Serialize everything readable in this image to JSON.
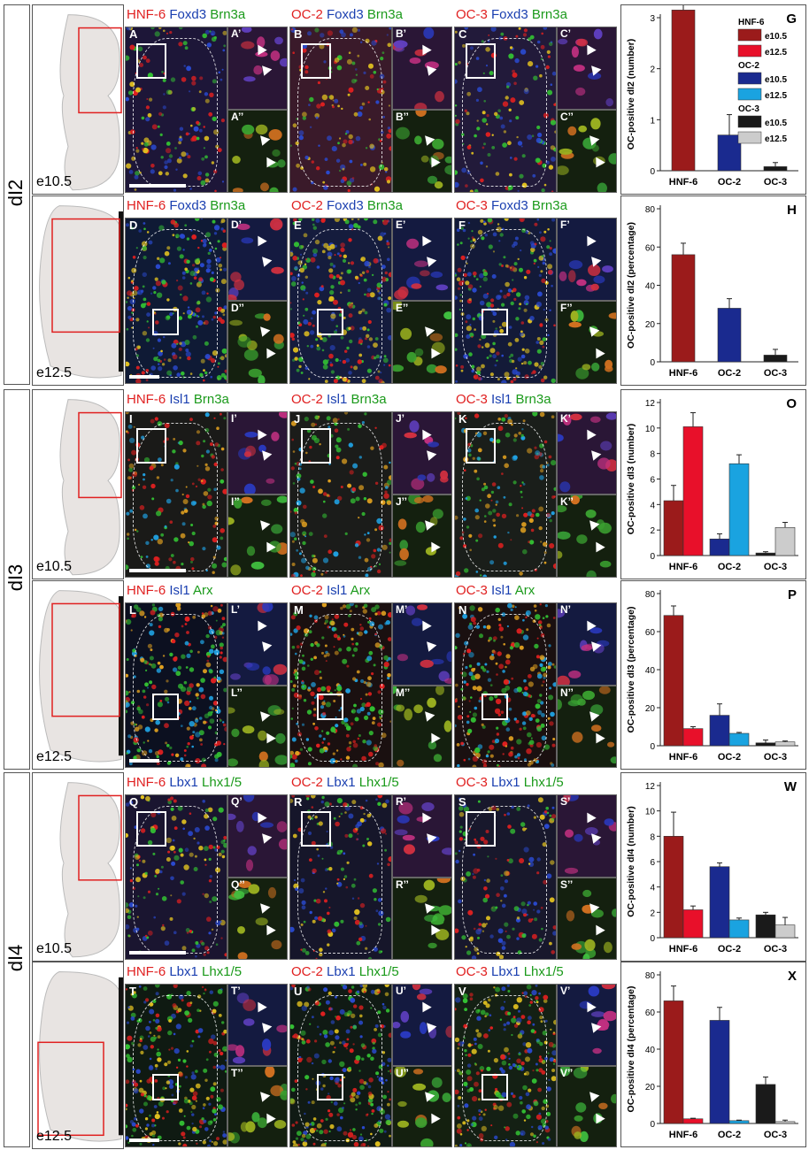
{
  "sections": [
    {
      "id": "dI2",
      "label": "dI2"
    },
    {
      "id": "dI3",
      "label": "dI3"
    },
    {
      "id": "dI4",
      "label": "dI4"
    }
  ],
  "stages": {
    "e105": "e10.5",
    "e125": "e12.5"
  },
  "colors": {
    "red": "#e02020",
    "blue": "#1a3fb0",
    "green": "#1b9a1b",
    "hnf6_e105": "#9b1b1b",
    "hnf6_e125": "#e8102a",
    "oc2_e105": "#1a2a8f",
    "oc2_e125": "#1aa3e0",
    "oc3_e105": "#1a1a1a",
    "oc3_e125": "#cccccc"
  },
  "rows": [
    {
      "panels": [
        {
          "letter": "A",
          "sub1": "A’",
          "sub2": "A’’",
          "h": [
            "HNF-6",
            "Foxd3",
            "Brn3a"
          ]
        },
        {
          "letter": "B",
          "sub1": "B’",
          "sub2": "B’’",
          "h": [
            "OC-2",
            "Foxd3",
            "Brn3a"
          ]
        },
        {
          "letter": "C",
          "sub1": "C’",
          "sub2": "C’’",
          "h": [
            "OC-3",
            "Foxd3",
            "Brn3a"
          ]
        }
      ]
    },
    {
      "panels": [
        {
          "letter": "D",
          "sub1": "D’",
          "sub2": "D’’",
          "h": [
            "HNF-6",
            "Foxd3",
            "Brn3a"
          ]
        },
        {
          "letter": "E",
          "sub1": "E’",
          "sub2": "E’’",
          "h": [
            "OC-2",
            "Foxd3",
            "Brn3a"
          ]
        },
        {
          "letter": "F",
          "sub1": "F’",
          "sub2": "F’’",
          "h": [
            "OC-3",
            "Foxd3",
            "Brn3a"
          ]
        }
      ]
    },
    {
      "panels": [
        {
          "letter": "I",
          "sub1": "I’",
          "sub2": "I’’",
          "h": [
            "HNF-6",
            "Isl1",
            "Brn3a"
          ]
        },
        {
          "letter": "J",
          "sub1": "J’",
          "sub2": "J’’",
          "h": [
            "OC-2",
            "Isl1",
            "Brn3a"
          ]
        },
        {
          "letter": "K",
          "sub1": "K’",
          "sub2": "K’’",
          "h": [
            "OC-3",
            "Isl1",
            "Brn3a"
          ]
        }
      ]
    },
    {
      "panels": [
        {
          "letter": "L",
          "sub1": "L’",
          "sub2": "L’’",
          "h": [
            "HNF-6",
            "Isl1",
            "Arx"
          ]
        },
        {
          "letter": "M",
          "sub1": "M’",
          "sub2": "M’’",
          "h": [
            "OC-2",
            "Isl1",
            "Arx"
          ]
        },
        {
          "letter": "N",
          "sub1": "N’",
          "sub2": "N’’",
          "h": [
            "OC-3",
            "Isl1",
            "Arx"
          ]
        }
      ]
    },
    {
      "panels": [
        {
          "letter": "Q",
          "sub1": "Q’",
          "sub2": "Q’’",
          "h": [
            "HNF-6",
            "Lbx1",
            "Lhx1/5"
          ]
        },
        {
          "letter": "R",
          "sub1": "R’",
          "sub2": "R’’",
          "h": [
            "OC-2",
            "Lbx1",
            "Lhx1/5"
          ]
        },
        {
          "letter": "S",
          "sub1": "S’",
          "sub2": "S’’",
          "h": [
            "OC-3",
            "Lbx1",
            "Lhx1/5"
          ]
        }
      ]
    },
    {
      "panels": [
        {
          "letter": "T",
          "sub1": "T’",
          "sub2": "T’’",
          "h": [
            "HNF-6",
            "Lbx1",
            "Lhx1/5"
          ]
        },
        {
          "letter": "U",
          "sub1": "U’",
          "sub2": "U’’",
          "h": [
            "OC-2",
            "Lbx1",
            "Lhx1/5"
          ]
        },
        {
          "letter": "V",
          "sub1": "V’",
          "sub2": "V’’",
          "h": [
            "OC-3",
            "Lbx1",
            "Lhx1/5"
          ]
        }
      ]
    }
  ],
  "legend": {
    "groups": [
      {
        "name": "HNF-6",
        "items": [
          "e10.5",
          "e12.5"
        ]
      },
      {
        "name": "OC-2",
        "items": [
          "e10.5",
          "e12.5"
        ]
      },
      {
        "name": "OC-3",
        "items": [
          "e10.5",
          "e12.5"
        ]
      }
    ]
  },
  "chart_data": [
    {
      "panel": "G",
      "type": "bar",
      "categories": [
        "HNF-6",
        "OC-2",
        "OC-3"
      ],
      "ylabel": "OC-positive dI2 (number)",
      "ylim": [
        0,
        3
      ],
      "yticks": [
        0,
        1,
        2,
        3
      ],
      "series": [
        {
          "name": "e10.5",
          "values": [
            3.15,
            0.7,
            0.08
          ],
          "errors": [
            0.8,
            0.4,
            0.08
          ]
        }
      ]
    },
    {
      "panel": "H",
      "type": "bar",
      "categories": [
        "HNF-6",
        "OC-2",
        "OC-3"
      ],
      "ylabel": "OC-positive dI2 (percentage)",
      "ylim": [
        0,
        80
      ],
      "yticks": [
        0,
        20,
        40,
        60,
        80
      ],
      "series": [
        {
          "name": "e10.5",
          "values": [
            56,
            28,
            3.5
          ],
          "errors": [
            6,
            5,
            3
          ]
        }
      ]
    },
    {
      "panel": "O",
      "type": "bar",
      "categories": [
        "HNF-6",
        "OC-2",
        "OC-3"
      ],
      "ylabel": "OC-positive dI3 (number)",
      "ylim": [
        0,
        12
      ],
      "yticks": [
        0,
        2,
        4,
        6,
        8,
        10,
        12
      ],
      "series": [
        {
          "name": "e10.5",
          "values": [
            4.3,
            1.3,
            0.2
          ],
          "errors": [
            1.2,
            0.4,
            0.1
          ]
        },
        {
          "name": "e12.5",
          "values": [
            10.1,
            7.2,
            2.2
          ],
          "errors": [
            1.1,
            0.7,
            0.4
          ]
        }
      ]
    },
    {
      "panel": "P",
      "type": "bar",
      "categories": [
        "HNF-6",
        "OC-2",
        "OC-3"
      ],
      "ylabel": "OC-positive dI3 (percentage)",
      "ylim": [
        0,
        80
      ],
      "yticks": [
        0,
        20,
        40,
        60,
        80
      ],
      "series": [
        {
          "name": "e10.5",
          "values": [
            68.5,
            16,
            1.5
          ],
          "errors": [
            5,
            6,
            1.5
          ]
        },
        {
          "name": "e12.5",
          "values": [
            9,
            6.5,
            2
          ],
          "errors": [
            1,
            0.5,
            0.5
          ]
        }
      ]
    },
    {
      "panel": "W",
      "type": "bar",
      "categories": [
        "HNF-6",
        "OC-2",
        "OC-3"
      ],
      "ylabel": "OC-positive dI4 (number)",
      "ylim": [
        0,
        12
      ],
      "yticks": [
        0,
        2,
        4,
        6,
        8,
        10,
        12
      ],
      "series": [
        {
          "name": "e10.5",
          "values": [
            8.0,
            5.6,
            1.8
          ],
          "errors": [
            1.9,
            0.3,
            0.2
          ]
        },
        {
          "name": "e12.5",
          "values": [
            2.2,
            1.4,
            1.0
          ],
          "errors": [
            0.3,
            0.15,
            0.6
          ]
        }
      ]
    },
    {
      "panel": "X",
      "type": "bar",
      "categories": [
        "HNF-6",
        "OC-2",
        "OC-3"
      ],
      "ylabel": "OC-positive dI4 (percentage)",
      "ylim": [
        0,
        80
      ],
      "yticks": [
        0,
        20,
        40,
        60,
        80
      ],
      "series": [
        {
          "name": "e10.5",
          "values": [
            66,
            55.5,
            21
          ],
          "errors": [
            8,
            7,
            4
          ]
        },
        {
          "name": "e12.5",
          "values": [
            2.5,
            1.5,
            1
          ],
          "errors": [
            0.3,
            0.3,
            0.8
          ]
        }
      ]
    }
  ]
}
